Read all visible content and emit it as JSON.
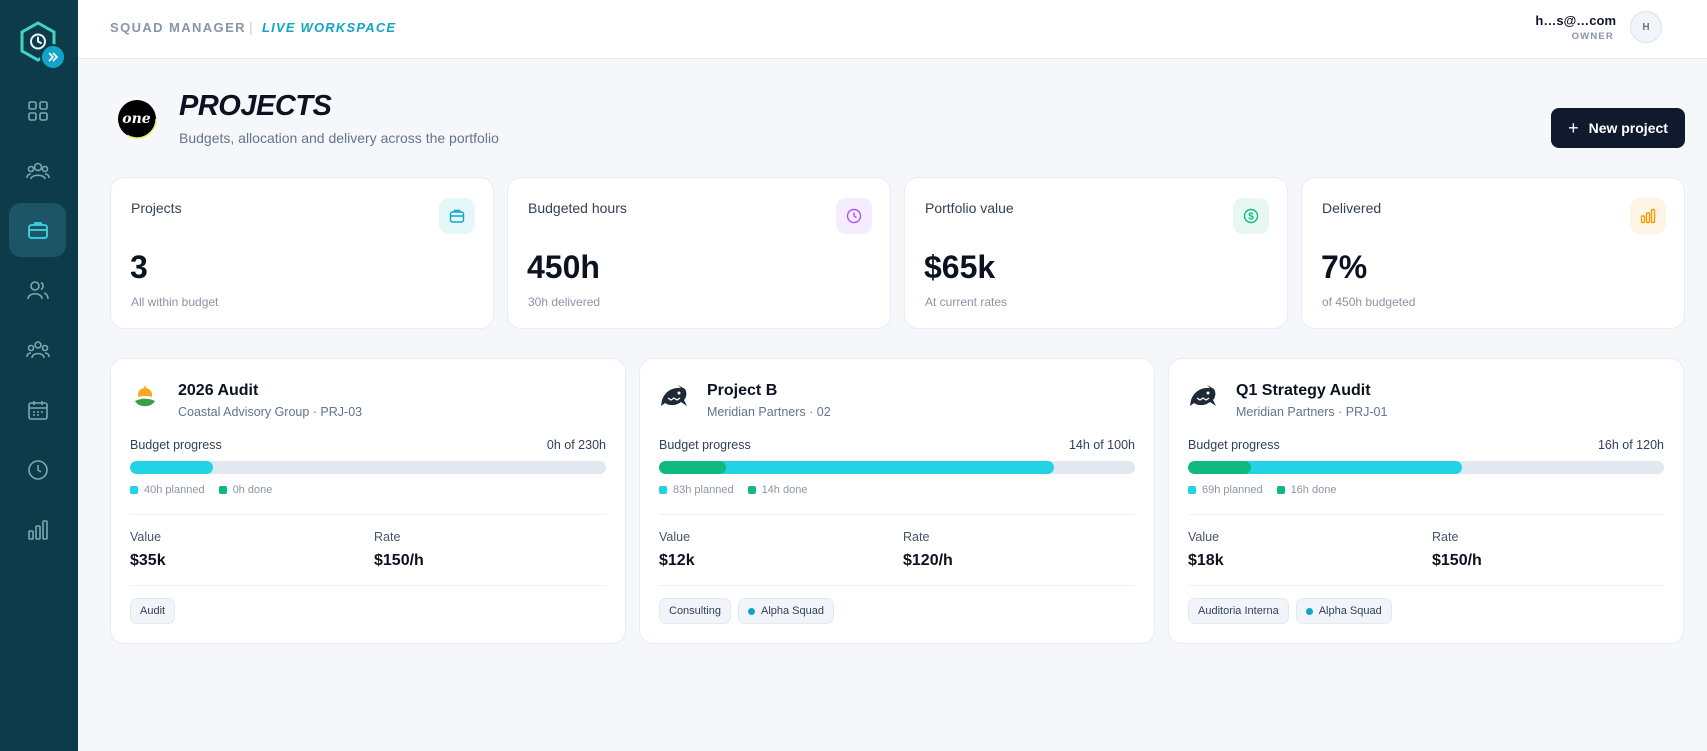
{
  "header": {
    "brand": "SQUAD MANAGER",
    "separator": "|",
    "workspace": "LIVE WORKSPACE",
    "user_email": "h…s@…com",
    "user_role": "OWNER",
    "avatar_initial": "H"
  },
  "sidebar": {
    "items": [
      {
        "icon": "dashboard-grid-icon",
        "active": false
      },
      {
        "icon": "team-icon",
        "active": false
      },
      {
        "icon": "briefcase-icon",
        "active": true
      },
      {
        "icon": "people-icon",
        "active": false
      },
      {
        "icon": "squads-icon",
        "active": false
      },
      {
        "icon": "calendar-icon",
        "active": false
      },
      {
        "icon": "clock-icon",
        "active": false
      },
      {
        "icon": "bar-chart-icon",
        "active": false
      }
    ]
  },
  "page": {
    "org_logo_text": "one",
    "title": "PROJECTS",
    "subtitle": "Budgets, allocation and delivery across the portfolio",
    "new_button_label": "New project",
    "new_button_icon": "+"
  },
  "stats": [
    {
      "label": "Projects",
      "value": "3",
      "note": "All within budget",
      "icon": "briefcase-icon",
      "color": "#0ea5c6",
      "bg": "#e6f7fa"
    },
    {
      "label": "Budgeted hours",
      "value": "450h",
      "note": "30h delivered",
      "icon": "clock-icon",
      "color": "#a855f7",
      "bg": "#f5edfe"
    },
    {
      "label": "Portfolio value",
      "value": "$65k",
      "note": "At current rates",
      "icon": "dollar-icon",
      "color": "#10b981",
      "bg": "#e7f8f1"
    },
    {
      "label": "Delivered",
      "value": "7%",
      "note": "of 450h budgeted",
      "icon": "bar-chart-icon",
      "color": "#f59e0b",
      "bg": "#fef5e6"
    }
  ],
  "projects": [
    {
      "name": "2026 Audit",
      "client": "Coastal Advisory Group · PRJ-03",
      "logo": "sunrise-logo",
      "budget_label": "Budget progress",
      "budget_value": "0h of 230h",
      "planned_fraction": 0.174,
      "done_fraction": 0.0,
      "planned_label": "40h planned",
      "done_label": "0h done",
      "value_label": "Value",
      "value": "$35k",
      "rate_label": "Rate",
      "rate": "$150/h",
      "tags": [
        {
          "text": "Audit",
          "dot": false
        }
      ]
    },
    {
      "name": "Project B",
      "client": "Meridian Partners · 02",
      "logo": "shark-logo",
      "budget_label": "Budget progress",
      "budget_value": "14h of 100h",
      "planned_fraction": 0.83,
      "done_fraction": 0.14,
      "planned_label": "83h planned",
      "done_label": "14h done",
      "value_label": "Value",
      "value": "$12k",
      "rate_label": "Rate",
      "rate": "$120/h",
      "tags": [
        {
          "text": "Consulting",
          "dot": false
        },
        {
          "text": "Alpha Squad",
          "dot": true
        }
      ]
    },
    {
      "name": "Q1 Strategy Audit",
      "client": "Meridian Partners · PRJ-01",
      "logo": "shark-logo",
      "budget_label": "Budget progress",
      "budget_value": "16h of 120h",
      "planned_fraction": 0.575,
      "done_fraction": 0.133,
      "planned_label": "69h planned",
      "done_label": "16h done",
      "value_label": "Value",
      "value": "$18k",
      "rate_label": "Rate",
      "rate": "$150/h",
      "tags": [
        {
          "text": "Auditoria Interna",
          "dot": false
        },
        {
          "text": "Alpha Squad",
          "dot": true
        }
      ]
    }
  ],
  "colors": {
    "sidebar": "#0e3b4a",
    "accent": "#12a4c7",
    "planned": "#22d3e6",
    "done": "#10b981",
    "button": "#0f1a2e"
  }
}
